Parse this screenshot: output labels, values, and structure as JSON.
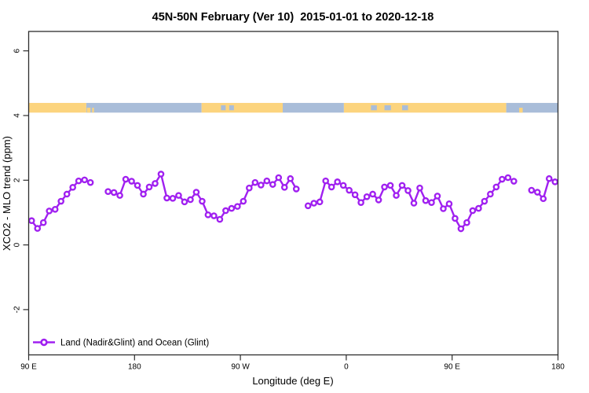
{
  "window": {
    "background": "#ffffff"
  },
  "chart_data": {
    "type": "line",
    "title": "45N-50N February (Ver 10)  2015-01-01 to 2020-12-18",
    "xlabel": "Longitude (deg E)",
    "ylabel": "XCO2 - MLO trend (ppm)",
    "xlim_axis_degrees": [
      90,
      540
    ],
    "ylim": [
      -3.4,
      6.6
    ],
    "grid": "off",
    "x_ticks": [
      {
        "pos": 90,
        "label": "90 E"
      },
      {
        "pos": 180,
        "label": "180"
      },
      {
        "pos": 270,
        "label": "90 W"
      },
      {
        "pos": 360,
        "label": "0"
      },
      {
        "pos": 450,
        "label": "90 E"
      },
      {
        "pos": 540,
        "label": "180"
      }
    ],
    "y_ticks": [
      {
        "pos": -2,
        "label": "-2"
      },
      {
        "pos": 0,
        "label": "0"
      },
      {
        "pos": 2,
        "label": "2"
      },
      {
        "pos": 4,
        "label": "4"
      },
      {
        "pos": 6,
        "label": "6"
      }
    ],
    "legend": {
      "position": "bottom-left",
      "entries": [
        {
          "label": "Land (Nadir&Glint) and Ocean (Glint)",
          "color": "#a020f0",
          "marker": "open-circle",
          "line": true
        }
      ]
    },
    "land_ocean_band": {
      "description": "land/ocean strip along longitude near y=4.25 ppm",
      "y_range_ppm": [
        4.09,
        4.39
      ],
      "land_color": "#fcd47e",
      "ocean_color": "#a9bdd9",
      "segments": [
        {
          "from": 90,
          "to": 139,
          "type": "land"
        },
        {
          "from": 139,
          "to": 237,
          "type": "ocean"
        },
        {
          "from": 237,
          "to": 306,
          "type": "land"
        },
        {
          "from": 306,
          "to": 358,
          "type": "ocean"
        },
        {
          "from": 358,
          "to": 496,
          "type": "land"
        },
        {
          "from": 496,
          "to": 540,
          "type": "ocean"
        }
      ],
      "lakes": [
        {
          "from": 253.5,
          "to": 257.5
        },
        {
          "from": 260.5,
          "to": 264.5
        },
        {
          "from": 381,
          "to": 386
        },
        {
          "from": 392.5,
          "to": 398
        },
        {
          "from": 407.5,
          "to": 412.5
        }
      ],
      "land_speckles": [
        {
          "from": 139.5,
          "to": 142.5
        },
        {
          "from": 144,
          "to": 145.5
        },
        {
          "from": 507,
          "to": 510
        }
      ]
    },
    "series": [
      {
        "name": "Land (Nadir&Glint) and Ocean (Glint)",
        "color": "#a020f0",
        "marker": "open-circle",
        "points": [
          [
            92.5,
            0.75
          ],
          [
            97.5,
            0.51
          ],
          [
            102.5,
            0.69
          ],
          [
            107.5,
            1.05
          ],
          [
            112.5,
            1.1
          ],
          [
            117.5,
            1.35
          ],
          [
            122.5,
            1.57
          ],
          [
            127.5,
            1.78
          ],
          [
            132.5,
            1.98
          ],
          [
            137.5,
            2.01
          ],
          [
            142.5,
            1.93
          ],
          [
            157.5,
            1.65
          ],
          [
            162.5,
            1.62
          ],
          [
            167.5,
            1.53
          ],
          [
            172.5,
            2.03
          ],
          [
            177.5,
            1.97
          ],
          [
            182.5,
            1.84
          ],
          [
            187.5,
            1.57
          ],
          [
            192.5,
            1.79
          ],
          [
            197.5,
            1.9
          ],
          [
            202.5,
            2.19
          ],
          [
            207.5,
            1.45
          ],
          [
            212.5,
            1.44
          ],
          [
            217.5,
            1.53
          ],
          [
            222.5,
            1.33
          ],
          [
            227.5,
            1.4
          ],
          [
            232.5,
            1.63
          ],
          [
            237.5,
            1.35
          ],
          [
            242.5,
            0.93
          ],
          [
            247.5,
            0.9
          ],
          [
            252.5,
            0.79
          ],
          [
            257.5,
            1.06
          ],
          [
            262.5,
            1.13
          ],
          [
            267.5,
            1.19
          ],
          [
            272.5,
            1.35
          ],
          [
            277.5,
            1.76
          ],
          [
            282.5,
            1.93
          ],
          [
            287.5,
            1.85
          ],
          [
            292.5,
            1.98
          ],
          [
            297.5,
            1.87
          ],
          [
            302.5,
            2.08
          ],
          [
            307.5,
            1.78
          ],
          [
            312.5,
            2.05
          ],
          [
            317.5,
            1.73
          ],
          [
            327.5,
            1.21
          ],
          [
            332.5,
            1.29
          ],
          [
            337.5,
            1.33
          ],
          [
            342.5,
            1.98
          ],
          [
            347.5,
            1.79
          ],
          [
            352.5,
            1.95
          ],
          [
            357.5,
            1.84
          ],
          [
            362.5,
            1.69
          ],
          [
            367.5,
            1.55
          ],
          [
            372.5,
            1.31
          ],
          [
            377.5,
            1.49
          ],
          [
            382.5,
            1.57
          ],
          [
            387.5,
            1.39
          ],
          [
            392.5,
            1.79
          ],
          [
            397.5,
            1.84
          ],
          [
            402.5,
            1.53
          ],
          [
            407.5,
            1.84
          ],
          [
            412.5,
            1.68
          ],
          [
            417.5,
            1.29
          ],
          [
            422.5,
            1.76
          ],
          [
            427.5,
            1.37
          ],
          [
            432.5,
            1.31
          ],
          [
            437.5,
            1.51
          ],
          [
            442.5,
            1.12
          ],
          [
            447.5,
            1.27
          ],
          [
            452.5,
            0.82
          ],
          [
            457.5,
            0.5
          ],
          [
            462.5,
            0.69
          ],
          [
            467.5,
            1.06
          ],
          [
            472.5,
            1.13
          ],
          [
            477.5,
            1.35
          ],
          [
            482.5,
            1.57
          ],
          [
            487.5,
            1.79
          ],
          [
            492.5,
            2.03
          ],
          [
            497.5,
            2.08
          ],
          [
            502.5,
            1.97
          ],
          [
            517.5,
            1.69
          ],
          [
            522.5,
            1.63
          ],
          [
            527.5,
            1.43
          ],
          [
            532.5,
            2.05
          ],
          [
            537.5,
            1.95
          ]
        ]
      }
    ],
    "colors": {
      "axis": "#2d2d2d",
      "series_purple": "#a020f0",
      "band_land": "#fcd47e",
      "band_ocean": "#a9bdd9"
    }
  }
}
